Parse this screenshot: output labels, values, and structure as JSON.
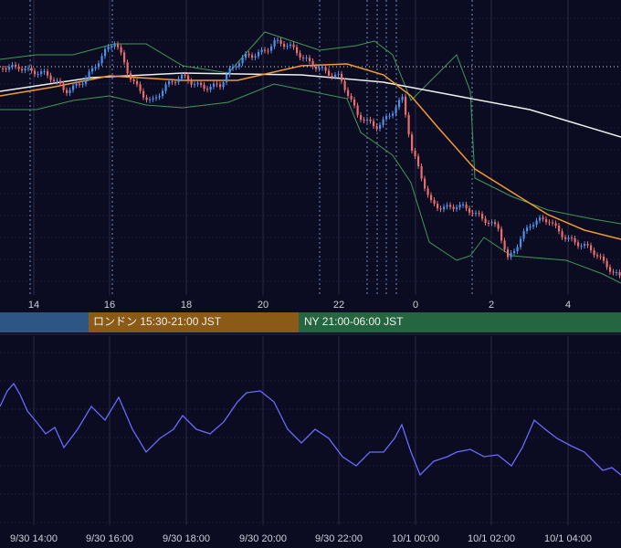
{
  "top_axis": {
    "labels": [
      "14",
      "16",
      "18",
      "20",
      "22",
      "0",
      "2",
      "4"
    ]
  },
  "sessions": {
    "london": "ロンドン 15:30-21:00 JST",
    "ny": "NY 21:00-06:00 JST"
  },
  "bottom_axis": {
    "labels": [
      "9/30 14:00",
      "9/30 16:00",
      "9/30 18:00",
      "9/30 20:00",
      "9/30 22:00",
      "10/1 00:00",
      "10/1 02:00",
      "10/1 04:00"
    ]
  }
}
